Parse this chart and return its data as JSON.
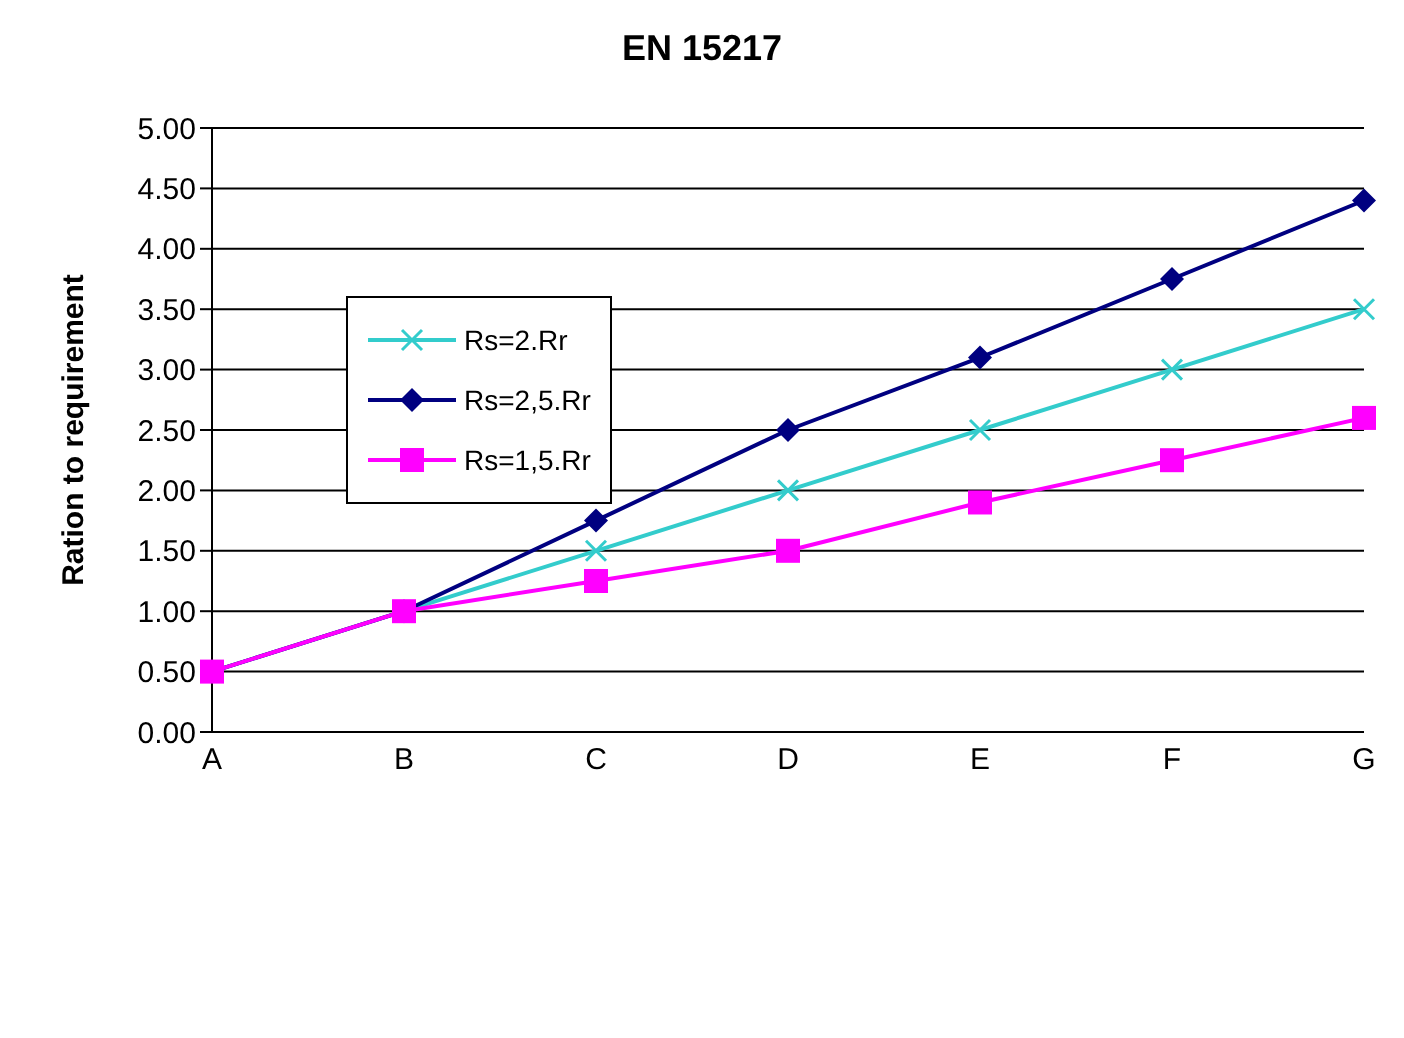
{
  "chart_data": {
    "type": "line",
    "title": "EN 15217",
    "ylabel": "Ration to requirement",
    "categories": [
      "A",
      "B",
      "C",
      "D",
      "E",
      "F",
      "G"
    ],
    "series": [
      {
        "name": "Rs=2.Rr",
        "color": "#33cccc",
        "marker": "cross",
        "values": [
          0.5,
          1,
          1.5,
          2,
          2.5,
          3,
          3.5
        ]
      },
      {
        "name": "Rs=2,5.Rr",
        "color": "#000080",
        "marker": "diamond",
        "values": [
          0.5,
          1,
          1.75,
          2.5,
          3.1,
          3.75,
          4.4
        ]
      },
      {
        "name": "Rs=1,5.Rr",
        "color": "#ff00ff",
        "marker": "square",
        "values": [
          0.5,
          1,
          1.25,
          1.5,
          1.9,
          2.25,
          2.6
        ]
      }
    ],
    "ylim": [
      0,
      5
    ],
    "yticks": [
      {
        "value": 0,
        "label": "0.00"
      },
      {
        "value": 0.5,
        "label": "0.50"
      },
      {
        "value": 1,
        "label": "1.00"
      },
      {
        "value": 1.5,
        "label": "1.50"
      },
      {
        "value": 2,
        "label": "2.00"
      },
      {
        "value": 2.5,
        "label": "2.50"
      },
      {
        "value": 3,
        "label": "3.00"
      },
      {
        "value": 3.5,
        "label": "3.50"
      },
      {
        "value": 4,
        "label": "4.00"
      },
      {
        "value": 4.5,
        "label": "4.50"
      },
      {
        "value": 5,
        "label": "5.00"
      }
    ],
    "grid": "y",
    "legend": "top left",
    "line_style": "solid"
  }
}
